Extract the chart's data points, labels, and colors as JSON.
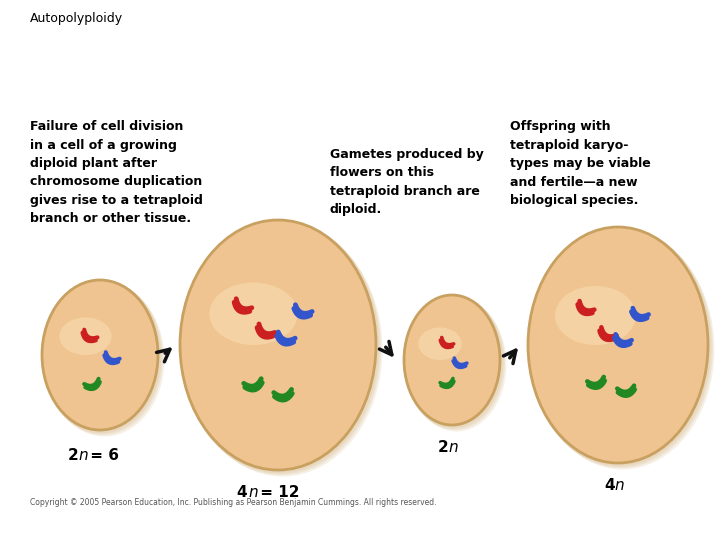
{
  "title": "Autopolyploidy",
  "background_color": "#ffffff",
  "cell_color": "#f0c490",
  "cell_edge_color": "#c8a060",
  "text_left": "Failure of cell division\nin a cell of a growing\ndiploid plant after\nchromosome duplication\ngives rise to a tetraploid\nbranch or other tissue.",
  "text_middle": "Gametes produced by\nflowers on this\ntetraploid branch are\ndiploid.",
  "text_right": "Offspring with\ntetraploid karyo-\ntypes may be viable\nand fertile—a new\nbiological species.",
  "label1": "2$n$ = 6",
  "label2": "4$n$ = 12",
  "label3": "2$n$",
  "label4": "4$n$",
  "copyright": "Copyright © 2005 Pearson Education, Inc. Publishing as Pearson Benjamin Cummings. All rights reserved.",
  "chr_red": "#cc2020",
  "chr_blue": "#3355cc",
  "chr_green": "#228822",
  "arrow_color": "#111111"
}
